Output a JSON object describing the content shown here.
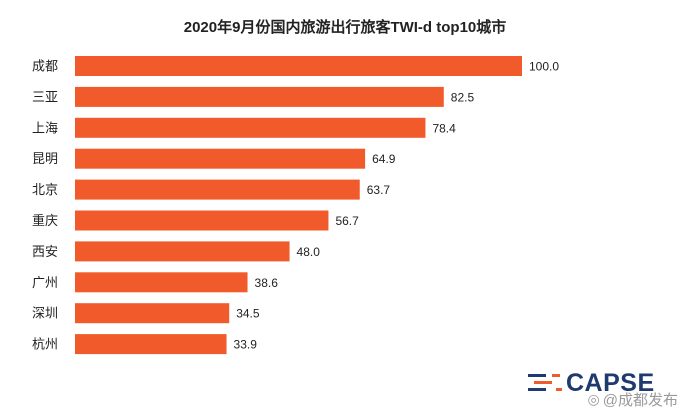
{
  "chart_data": {
    "type": "bar",
    "orientation": "horizontal",
    "title": "2020年9月份国内旅游出行旅客TWI-d top10城市",
    "categories": [
      "成都",
      "三亚",
      "上海",
      "昆明",
      "北京",
      "重庆",
      "西安",
      "广州",
      "深圳",
      "杭州"
    ],
    "values": [
      100.0,
      82.5,
      78.4,
      64.9,
      63.7,
      56.7,
      48.0,
      38.6,
      34.5,
      33.9
    ],
    "value_labels": [
      "100.0",
      "82.5",
      "78.4",
      "64.9",
      "63.7",
      "56.7",
      "48.0",
      "38.6",
      "34.5",
      "33.9"
    ],
    "xlim": [
      0,
      100
    ],
    "bar_color": "#f15a2b",
    "grid": false,
    "legend": "none"
  },
  "logo": {
    "text": "CAPSE",
    "color": "#1f3a6e",
    "accent_color": "#f15a2b"
  },
  "watermark": {
    "text": "@成都发布",
    "color": "#9a9a9a"
  }
}
